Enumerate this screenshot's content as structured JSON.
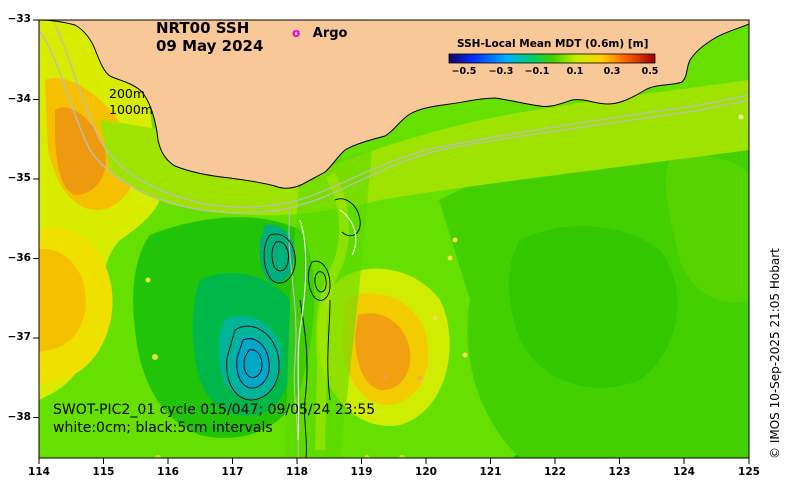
{
  "title": {
    "product": "NRT00 SSH",
    "date": "09 May 2024"
  },
  "argo_legend": {
    "symbol": "o",
    "label": "Argo",
    "color": "#e600e6"
  },
  "isobaths": [
    "200m",
    "1000m"
  ],
  "colorbar": {
    "title": "SSH-Local Mean MDT (0.6m) [m]",
    "ticks": [
      "−0.5",
      "−0.3",
      "−0.1",
      "0.1",
      "0.3",
      "0.5"
    ],
    "range": [
      -0.5,
      0.5
    ]
  },
  "swot_info": {
    "line1": "SWOT-PIC2_01 cycle 015/047; 09/05/24 23:55",
    "line2": "white:0cm; black:5cm intervals"
  },
  "x_ticks": [
    "114",
    "115",
    "116",
    "117",
    "118",
    "119",
    "120",
    "121",
    "122",
    "123",
    "124",
    "125"
  ],
  "y_ticks": [
    "−33",
    "−34",
    "−35",
    "−36",
    "−37",
    "−38"
  ],
  "credit": "© IMOS 10-Sep-2025 21:05 Hobart",
  "colors": {
    "land": "#f9c899",
    "background": "#66e000"
  }
}
